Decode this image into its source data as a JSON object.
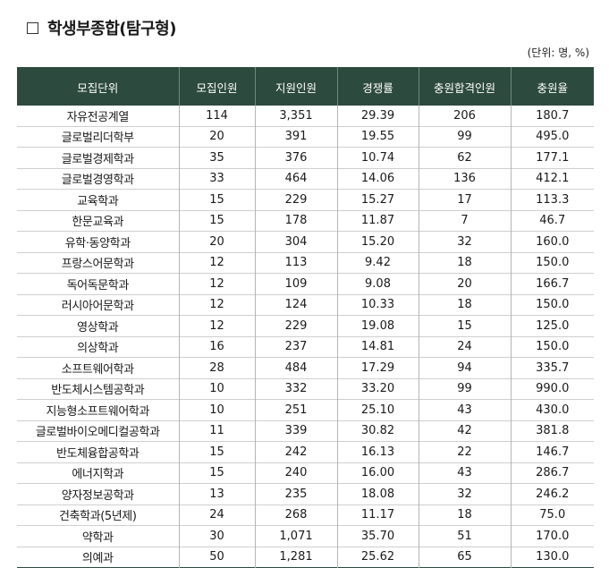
{
  "title": "학생부종합(탐구형)",
  "unit_note": "(단위: 명, %)",
  "columns": [
    "모집단위",
    "모집인원",
    "지원인원",
    "경쟁률",
    "충원합격인원",
    "충원율"
  ],
  "rows": [
    [
      "자유전공계열",
      "114",
      "3,351",
      "29.39",
      "206",
      "180.7"
    ],
    [
      "글로벌리더학부",
      "20",
      "391",
      "19.55",
      "99",
      "495.0"
    ],
    [
      "글로벌경제학과",
      "35",
      "376",
      "10.74",
      "62",
      "177.1"
    ],
    [
      "글로벌경영학과",
      "33",
      "464",
      "14.06",
      "136",
      "412.1"
    ],
    [
      "교육학과",
      "15",
      "229",
      "15.27",
      "17",
      "113.3"
    ],
    [
      "한문교육과",
      "15",
      "178",
      "11.87",
      "7",
      "46.7"
    ],
    [
      "유학·동양학과",
      "20",
      "304",
      "15.20",
      "32",
      "160.0"
    ],
    [
      "프랑스어문학과",
      "12",
      "113",
      "9.42",
      "18",
      "150.0"
    ],
    [
      "독어독문학과",
      "12",
      "109",
      "9.08",
      "20",
      "166.7"
    ],
    [
      "러시아어문학과",
      "12",
      "124",
      "10.33",
      "18",
      "150.0"
    ],
    [
      "영상학과",
      "12",
      "229",
      "19.08",
      "15",
      "125.0"
    ],
    [
      "의상학과",
      "16",
      "237",
      "14.81",
      "24",
      "150.0"
    ],
    [
      "소프트웨어학과",
      "28",
      "484",
      "17.29",
      "94",
      "335.7"
    ],
    [
      "반도체시스템공학과",
      "10",
      "332",
      "33.20",
      "99",
      "990.0"
    ],
    [
      "지능형소프트웨어학과",
      "10",
      "251",
      "25.10",
      "43",
      "430.0"
    ],
    [
      "글로벌바이오메디컬공학과",
      "11",
      "339",
      "30.82",
      "42",
      "381.8"
    ],
    [
      "반도체융합공학과",
      "15",
      "242",
      "16.13",
      "22",
      "146.7"
    ],
    [
      "에너지학과",
      "15",
      "240",
      "16.00",
      "43",
      "286.7"
    ],
    [
      "양자정보공학과",
      "13",
      "235",
      "18.08",
      "32",
      "246.2"
    ],
    [
      "건축학과(5년제)",
      "24",
      "268",
      "11.17",
      "18",
      "75.0"
    ],
    [
      "약학과",
      "30",
      "1,071",
      "35.70",
      "51",
      "170.0"
    ],
    [
      "의예과",
      "50",
      "1,281",
      "25.62",
      "65",
      "130.0"
    ]
  ]
}
